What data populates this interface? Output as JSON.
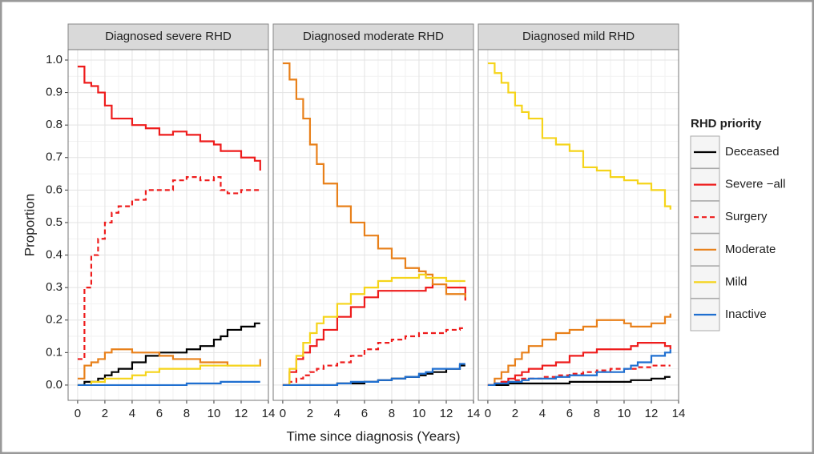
{
  "chart_data": [
    {
      "type": "line",
      "title": "Diagnosed severe RHD",
      "ylabel": "Proportion",
      "legend_title": "RHD priority",
      "grid": true,
      "x": [
        0,
        0.5,
        1,
        1.5,
        2,
        2.5,
        3,
        4,
        5,
        6,
        7,
        8,
        9,
        10,
        10.5,
        11,
        12,
        13,
        13.4
      ],
      "xlim": [
        -0.7,
        14
      ],
      "xticks": [
        0,
        2,
        4,
        6,
        8,
        10,
        12,
        14
      ],
      "ylim": [
        -0.047,
        1.032
      ],
      "yticks": [
        {
          "value": 0,
          "label": "0.0"
        },
        {
          "value": 0.1,
          "label": "0.1"
        },
        {
          "value": 0.2,
          "label": "0.2"
        },
        {
          "value": 0.3,
          "label": "0.3"
        },
        {
          "value": 0.4,
          "label": "0.4"
        },
        {
          "value": 0.5,
          "label": "0.5"
        },
        {
          "value": 0.6,
          "label": "0.6"
        },
        {
          "value": 0.7,
          "label": "0.7"
        },
        {
          "value": 0.8,
          "label": "0.8"
        },
        {
          "value": 0.9,
          "label": "0.9"
        },
        {
          "value": 1,
          "label": "1.0"
        }
      ],
      "series": [
        {
          "name": "Deceased",
          "color": "#000000",
          "values": [
            0,
            0.01,
            0.01,
            0.02,
            0.03,
            0.04,
            0.05,
            0.07,
            0.09,
            0.1,
            0.1,
            0.11,
            0.12,
            0.14,
            0.15,
            0.17,
            0.18,
            0.19,
            0.19
          ]
        },
        {
          "name": "Severe −all",
          "color": "#ee1c1c",
          "values": [
            0.98,
            0.93,
            0.92,
            0.9,
            0.86,
            0.82,
            0.82,
            0.8,
            0.79,
            0.77,
            0.78,
            0.77,
            0.75,
            0.74,
            0.72,
            0.72,
            0.7,
            0.69,
            0.66
          ]
        },
        {
          "name": "Surgery",
          "color": "#ee1c1c",
          "dash": true,
          "values": [
            0.08,
            0.3,
            0.4,
            0.45,
            0.5,
            0.53,
            0.55,
            0.57,
            0.6,
            0.6,
            0.63,
            0.64,
            0.63,
            0.64,
            0.6,
            0.59,
            0.6,
            0.6,
            0.6
          ]
        },
        {
          "name": "Moderate",
          "color": "#e8801a",
          "values": [
            0.02,
            0.06,
            0.07,
            0.08,
            0.1,
            0.11,
            0.11,
            0.1,
            0.1,
            0.09,
            0.08,
            0.08,
            0.07,
            0.07,
            0.07,
            0.06,
            0.06,
            0.06,
            0.08
          ]
        },
        {
          "name": "Mild",
          "color": "#f5d41a",
          "values": [
            0,
            0,
            0.01,
            0.01,
            0.02,
            0.02,
            0.02,
            0.03,
            0.04,
            0.05,
            0.05,
            0.05,
            0.06,
            0.06,
            0.06,
            0.06,
            0.06,
            0.06,
            0.06
          ]
        },
        {
          "name": "Inactive",
          "color": "#1f6fd0",
          "values": [
            0,
            0,
            0,
            0,
            0,
            0,
            0,
            0,
            0,
            0,
            0,
            0.005,
            0.005,
            0.005,
            0.01,
            0.01,
            0.01,
            0.01,
            0.01
          ]
        }
      ]
    },
    {
      "type": "line",
      "title": "Diagnosed moderate RHD",
      "xlabel": "Time since diagnosis (Years)",
      "grid": true,
      "x": [
        0,
        0.5,
        1,
        1.5,
        2,
        2.5,
        3,
        4,
        5,
        6,
        7,
        8,
        9,
        10,
        10.5,
        11,
        12,
        13,
        13.4
      ],
      "xlim": [
        -0.7,
        14
      ],
      "xticks": [
        0,
        2,
        4,
        6,
        8,
        10,
        12,
        14
      ],
      "ylim": [
        -0.047,
        1.032
      ],
      "series": [
        {
          "name": "Deceased",
          "color": "#000000",
          "values": [
            0,
            0,
            0,
            0,
            0,
            0,
            0,
            0.005,
            0.005,
            0.01,
            0.015,
            0.02,
            0.025,
            0.03,
            0.035,
            0.04,
            0.05,
            0.06,
            0.06
          ]
        },
        {
          "name": "Severe −all",
          "color": "#ee1c1c",
          "values": [
            0,
            0.04,
            0.08,
            0.1,
            0.12,
            0.14,
            0.17,
            0.21,
            0.24,
            0.27,
            0.29,
            0.29,
            0.29,
            0.29,
            0.3,
            0.31,
            0.3,
            0.3,
            0.26
          ]
        },
        {
          "name": "Surgery",
          "color": "#ee1c1c",
          "dash": true,
          "values": [
            0,
            0.01,
            0.02,
            0.03,
            0.04,
            0.05,
            0.06,
            0.07,
            0.09,
            0.11,
            0.13,
            0.14,
            0.15,
            0.16,
            0.16,
            0.16,
            0.17,
            0.175,
            0.175
          ]
        },
        {
          "name": "Moderate",
          "color": "#e8801a",
          "values": [
            0.99,
            0.94,
            0.88,
            0.82,
            0.74,
            0.68,
            0.62,
            0.55,
            0.5,
            0.46,
            0.42,
            0.39,
            0.36,
            0.35,
            0.34,
            0.31,
            0.28,
            0.28,
            0.27
          ]
        },
        {
          "name": "Mild",
          "color": "#f5d41a",
          "values": [
            0,
            0.05,
            0.09,
            0.13,
            0.16,
            0.19,
            0.21,
            0.25,
            0.28,
            0.3,
            0.32,
            0.33,
            0.33,
            0.34,
            0.33,
            0.33,
            0.32,
            0.32,
            0.32
          ]
        },
        {
          "name": "Inactive",
          "color": "#1f6fd0",
          "values": [
            0,
            0,
            0,
            0,
            0,
            0,
            0,
            0.005,
            0.01,
            0.01,
            0.015,
            0.02,
            0.025,
            0.035,
            0.04,
            0.05,
            0.05,
            0.065,
            0.065
          ]
        }
      ]
    },
    {
      "type": "line",
      "title": "Diagnosed mild RHD",
      "grid": true,
      "x": [
        0,
        0.5,
        1,
        1.5,
        2,
        2.5,
        3,
        4,
        5,
        6,
        7,
        8,
        9,
        10,
        10.5,
        11,
        12,
        13,
        13.4
      ],
      "xlim": [
        -0.7,
        14
      ],
      "xticks": [
        0,
        2,
        4,
        6,
        8,
        10,
        12,
        14
      ],
      "ylim": [
        -0.047,
        1.032
      ],
      "series": [
        {
          "name": "Deceased",
          "color": "#000000",
          "values": [
            0,
            0,
            0,
            0.005,
            0.005,
            0.005,
            0.005,
            0.005,
            0.005,
            0.01,
            0.01,
            0.01,
            0.01,
            0.01,
            0.015,
            0.015,
            0.02,
            0.025,
            0.025
          ]
        },
        {
          "name": "Severe −all",
          "color": "#ee1c1c",
          "values": [
            0,
            0.005,
            0.01,
            0.02,
            0.03,
            0.04,
            0.05,
            0.06,
            0.07,
            0.09,
            0.1,
            0.11,
            0.11,
            0.11,
            0.12,
            0.13,
            0.13,
            0.12,
            0.11
          ]
        },
        {
          "name": "Surgery",
          "color": "#ee1c1c",
          "dash": true,
          "values": [
            0,
            0.005,
            0.01,
            0.01,
            0.015,
            0.02,
            0.02,
            0.025,
            0.03,
            0.035,
            0.04,
            0.045,
            0.05,
            0.05,
            0.05,
            0.055,
            0.06,
            0.06,
            0.06
          ]
        },
        {
          "name": "Moderate",
          "color": "#e8801a",
          "values": [
            0,
            0.02,
            0.04,
            0.06,
            0.08,
            0.1,
            0.12,
            0.14,
            0.16,
            0.17,
            0.18,
            0.2,
            0.2,
            0.19,
            0.18,
            0.18,
            0.19,
            0.21,
            0.22
          ]
        },
        {
          "name": "Mild",
          "color": "#f5d41a",
          "values": [
            0.99,
            0.96,
            0.93,
            0.9,
            0.86,
            0.84,
            0.82,
            0.76,
            0.74,
            0.72,
            0.67,
            0.66,
            0.64,
            0.63,
            0.63,
            0.62,
            0.6,
            0.55,
            0.54
          ]
        },
        {
          "name": "Inactive",
          "color": "#1f6fd0",
          "values": [
            0,
            0.005,
            0.005,
            0.01,
            0.01,
            0.015,
            0.02,
            0.02,
            0.025,
            0.03,
            0.03,
            0.04,
            0.04,
            0.05,
            0.06,
            0.07,
            0.09,
            0.1,
            0.11
          ]
        }
      ]
    }
  ]
}
